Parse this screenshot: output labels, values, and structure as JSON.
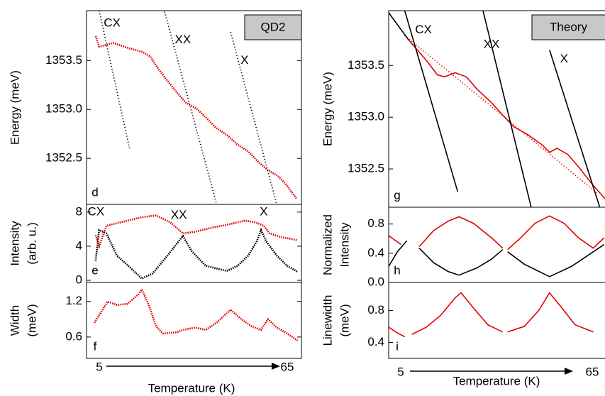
{
  "chart_data": [
    {
      "type": "scatter",
      "tag": "QD2",
      "panel_label": "d",
      "ylabel": [
        "Energy (meV)"
      ],
      "xlim": [
        2,
        70
      ],
      "ylim": [
        1352.03,
        1354.01
      ],
      "yticks": [
        1352.5,
        {
          "value": 1353,
          "label": "1353.0"
        },
        1353.5
      ],
      "series": [
        {
          "color": "#e00000",
          "style": "dots",
          "x": [
            4.9,
            6.0,
            10.5,
            15.0,
            19.5,
            22.2,
            24.4,
            27.4,
            30.7,
            33.4,
            36.8,
            39.7,
            43.1,
            46.4,
            49.8,
            53.2,
            56.5,
            59.4,
            62.6,
            65.5,
            68.4
          ],
          "values": [
            1353.75,
            1353.64,
            1353.68,
            1353.63,
            1353.59,
            1353.54,
            1353.43,
            1353.3,
            1353.17,
            1353.07,
            1353.01,
            1352.92,
            1352.81,
            1352.74,
            1352.64,
            1352.57,
            1352.46,
            1352.38,
            1352.32,
            1352.22,
            1352.09
          ]
        },
        {
          "color": "#000000",
          "style": "dotted",
          "x": [
            6.0,
            15.7
          ],
          "values": [
            1354.01,
            1352.59
          ]
        },
        {
          "color": "#000000",
          "style": "dotted",
          "x": [
            26.7,
            43.1
          ],
          "values": [
            1354.0,
            1352.04
          ]
        },
        {
          "color": "#000000",
          "style": "dotted",
          "x": [
            47.6,
            62.1
          ],
          "values": [
            1353.79,
            1352.04
          ]
        }
      ],
      "annotations": [
        {
          "text": "CX",
          "x": 10.1,
          "y": 1353.88
        },
        {
          "text": "XX",
          "x": 32.5,
          "y": 1353.71
        },
        {
          "text": "X",
          "x": 52,
          "y": 1353.5
        }
      ]
    },
    {
      "type": "scatter",
      "panel_label": "e",
      "ylabel": [
        "Intensity",
        "(arb. u.)"
      ],
      "xlim": [
        2,
        70
      ],
      "ylim": [
        -0.25,
        8.9
      ],
      "yticks": [
        0,
        4,
        8
      ],
      "series": [
        {
          "color": "#e00000",
          "style": "dots",
          "x": [
            4.9,
            6.0,
            8.3,
            12.8,
            19.5,
            24.0,
            28.5,
            32.5,
            36.4,
            42.0,
            46.4,
            52.1,
            55.4,
            58.1,
            59.9,
            63.2,
            68.8
          ],
          "values": [
            5.3,
            4.0,
            6.4,
            6.8,
            7.4,
            7.6,
            6.8,
            5.5,
            5.7,
            6.2,
            6.5,
            7.0,
            6.8,
            6.4,
            5.5,
            5.1,
            4.7
          ]
        },
        {
          "color": "#000000",
          "style": "dots",
          "x": [
            4.9,
            6.0,
            8.3,
            11.6,
            16.1,
            19.5,
            22.9,
            27.4,
            32.5,
            35.3,
            39.7,
            46.4,
            49.8,
            53.2,
            55.9,
            57.2,
            58.8,
            62.2,
            65.5,
            68.8
          ],
          "values": [
            2.3,
            5.9,
            5.5,
            2.9,
            1.4,
            0.2,
            0.8,
            2.8,
            5.2,
            3.4,
            1.7,
            1.1,
            1.7,
            2.9,
            4.6,
            5.9,
            4.6,
            2.9,
            1.7,
            1.0
          ]
        }
      ],
      "annotations": [
        {
          "text": "CX",
          "x": 5,
          "y": 8
        },
        {
          "text": "XX",
          "x": 31.2,
          "y": 7.6
        },
        {
          "text": "X",
          "x": 58.1,
          "y": 8
        }
      ]
    },
    {
      "type": "scatter",
      "panel_label": "f",
      "ylabel": [
        "Width",
        "(meV)"
      ],
      "xlim": [
        2,
        70
      ],
      "ylim": [
        0.24,
        1.52
      ],
      "yticks": [
        0.6,
        1.2
      ],
      "series": [
        {
          "color": "#e00000",
          "style": "dots",
          "x": [
            4.5,
            8.7,
            11.6,
            15.0,
            18.4,
            19.5,
            21.7,
            24.0,
            26.2,
            30.7,
            32.5,
            36.4,
            39.7,
            43.1,
            47.6,
            51.0,
            54.3,
            57.2,
            59.4,
            62.2,
            65.5,
            68.8
          ],
          "values": [
            0.84,
            1.2,
            1.14,
            1.16,
            1.32,
            1.4,
            1.14,
            0.78,
            0.66,
            0.68,
            0.72,
            0.76,
            0.72,
            0.84,
            1.06,
            0.9,
            0.78,
            0.72,
            0.9,
            0.76,
            0.66,
            0.54
          ]
        }
      ]
    },
    {
      "type": "line",
      "tag": "Theory",
      "panel_label": "g",
      "ylabel": [
        "Energy (meV)"
      ],
      "xlim": [
        1,
        72.8
      ],
      "ylim": [
        1352.13,
        1354.03
      ],
      "yticks": [
        1352.5,
        {
          "value": 1353,
          "label": "1353.0"
        },
        1353.5
      ],
      "series": [
        {
          "color": "#e00000",
          "style": "solid",
          "x": [
            7.4,
            13.2,
            16.8,
            19.1,
            22.6,
            26.2,
            29.7,
            34.4,
            38.0,
            41.5,
            46.2,
            50.9,
            53.2,
            55.6,
            59.1,
            62.6,
            67.4,
            72.8
          ],
          "values": [
            1353.75,
            1353.55,
            1353.41,
            1353.39,
            1353.43,
            1353.39,
            1353.27,
            1353.14,
            1353.02,
            1352.91,
            1352.83,
            1352.73,
            1352.66,
            1352.7,
            1352.64,
            1352.52,
            1352.34,
            1352.16
          ]
        },
        {
          "color": "#e00000",
          "style": "dotted",
          "x": [
            6.2,
            68.5
          ],
          "values": [
            1353.79,
            1352.27
          ]
        },
        {
          "color": "#000000",
          "style": "solid",
          "x": [
            1,
            7.4
          ],
          "values": [
            1354.01,
            1353.75
          ]
        },
        {
          "color": "#000000",
          "style": "solid",
          "x": [
            6.2,
            23.4
          ],
          "values": [
            1354.03,
            1352.28
          ]
        },
        {
          "color": "#000000",
          "style": "solid",
          "x": [
            31.6,
            47.4
          ],
          "values": [
            1354.03,
            1352.11
          ]
        },
        {
          "color": "#000000",
          "style": "solid",
          "x": [
            53.2,
            69.7
          ],
          "values": [
            1353.65,
            1352.11
          ]
        }
      ],
      "annotations": [
        {
          "text": "CX",
          "x": 12.3,
          "y": 1353.84
        },
        {
          "text": "XX",
          "x": 34.4,
          "y": 1353.7
        },
        {
          "text": "X",
          "x": 57.9,
          "y": 1353.56
        }
      ]
    },
    {
      "type": "line",
      "panel_label": "h",
      "ylabel": [
        "Normalized",
        "Intensity"
      ],
      "xlim": [
        1,
        72.8
      ],
      "ylim": [
        0,
        1.03
      ],
      "yticks": [
        {
          "value": 0,
          "label": "0.0"
        },
        0.4,
        0.8
      ],
      "series": [
        {
          "color": "#e00000",
          "style": "solid",
          "x": [
            1,
            5,
            8.5,
            10.9,
            15.6,
            20.3,
            23.8,
            28.5,
            34.4,
            38,
            38.8,
            39.6,
            43.8,
            48.5,
            53.2,
            57.9,
            62.6,
            67.4,
            70.9
          ],
          "values": [
            0.64,
            0.52,
            null,
            0.49,
            0.71,
            0.84,
            0.9,
            0.81,
            0.61,
            0.47,
            null,
            0.45,
            0.61,
            0.81,
            0.91,
            0.81,
            0.61,
            0.47,
            0.61
          ]
        },
        {
          "color": "#000000",
          "style": "solid",
          "x": [
            1,
            3.8,
            6.9,
            8.9,
            10.9,
            15.6,
            20.3,
            23.8,
            29.7,
            34.4,
            38,
            38.8,
            39.6,
            45,
            53.2,
            60.3,
            67.4,
            70.9
          ],
          "values": [
            0.22,
            0.42,
            0.57,
            null,
            0.47,
            0.27,
            0.15,
            0.1,
            0.2,
            0.32,
            0.45,
            null,
            0.42,
            0.25,
            0.08,
            0.22,
            0.42,
            0.52
          ]
        }
      ]
    },
    {
      "type": "line",
      "panel_label": "i",
      "ylabel": [
        "Linewidth",
        "(meV)"
      ],
      "xlim": [
        1,
        72.8
      ],
      "ylim": [
        0.2,
        1.15
      ],
      "yticks": [
        0.4,
        0.8
      ],
      "series": [
        {
          "color": "#e00000",
          "style": "solid",
          "x": [
            1,
            3.8,
            6.2,
            7.4,
            8.5,
            13.2,
            17.9,
            22.6,
            24.5,
            28.5,
            33.2,
            38,
            38.8,
            39.6,
            45,
            49.7,
            53.2,
            56.8,
            61.5,
            67.4
          ],
          "values": [
            0.59,
            0.52,
            0.47,
            null,
            0.5,
            0.59,
            0.74,
            0.96,
            1.02,
            0.83,
            0.62,
            0.53,
            null,
            0.53,
            0.6,
            0.8,
            1.02,
            0.85,
            0.62,
            0.53
          ]
        }
      ]
    }
  ],
  "x_axes": [
    {
      "label": "Temperature (K)",
      "start": 5,
      "end": 65
    },
    {
      "label": "Temperature (K)",
      "start": 5,
      "end": 65
    }
  ]
}
